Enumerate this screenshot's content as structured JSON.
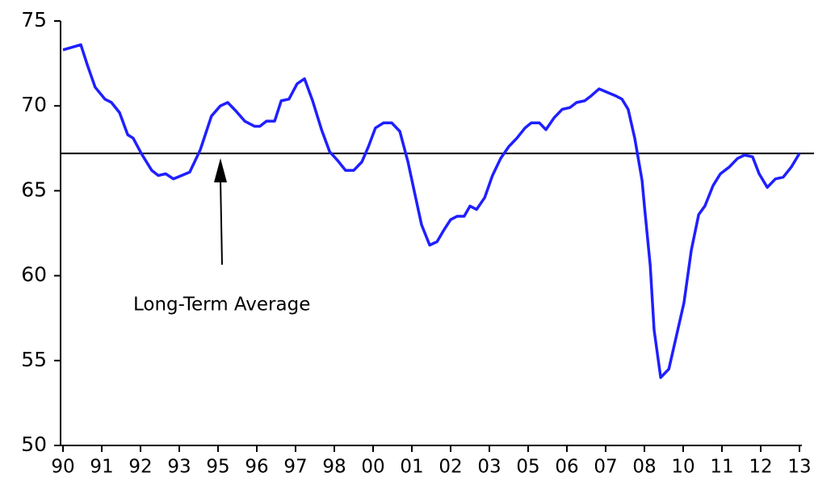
{
  "chart_data": {
    "type": "line",
    "xlim": [
      0,
      19
    ],
    "ylim": [
      50,
      75
    ],
    "yticks": [
      50,
      55,
      60,
      65,
      70,
      75
    ],
    "xticks": [
      {
        "value": 0,
        "label": "90"
      },
      {
        "value": 1,
        "label": "91"
      },
      {
        "value": 2,
        "label": "92"
      },
      {
        "value": 3,
        "label": "93"
      },
      {
        "value": 4,
        "label": "95"
      },
      {
        "value": 5,
        "label": "96"
      },
      {
        "value": 6,
        "label": "97"
      },
      {
        "value": 7,
        "label": "98"
      },
      {
        "value": 8,
        "label": "00"
      },
      {
        "value": 9,
        "label": "01"
      },
      {
        "value": 10,
        "label": "02"
      },
      {
        "value": 11,
        "label": "03"
      },
      {
        "value": 12,
        "label": "05"
      },
      {
        "value": 13,
        "label": "06"
      },
      {
        "value": 14,
        "label": "07"
      },
      {
        "value": 15,
        "label": "08"
      },
      {
        "value": 16,
        "label": "10"
      },
      {
        "value": 17,
        "label": "11"
      },
      {
        "value": 18,
        "label": "12"
      },
      {
        "value": 19,
        "label": "13"
      }
    ],
    "series": [
      {
        "color": "#1f1fff",
        "x": [
          0,
          0.46,
          0.63,
          0.83,
          1.08,
          1.25,
          1.46,
          1.67,
          1.81,
          2.02,
          2.29,
          2.46,
          2.65,
          2.85,
          3.06,
          3.27,
          3.54,
          3.83,
          4.06,
          4.25,
          4.46,
          4.69,
          4.94,
          5.08,
          5.25,
          5.46,
          5.63,
          5.83,
          6.04,
          6.23,
          6.44,
          6.67,
          6.88,
          7.08,
          7.29,
          7.5,
          7.71,
          7.88,
          8.06,
          8.27,
          8.48,
          8.69,
          8.9,
          9.06,
          9.25,
          9.46,
          9.65,
          9.83,
          10,
          10.17,
          10.35,
          10.5,
          10.67,
          10.88,
          11.08,
          11.29,
          11.5,
          11.71,
          11.92,
          12.08,
          12.29,
          12.46,
          12.67,
          12.88,
          13.08,
          13.25,
          13.46,
          13.63,
          13.83,
          14.04,
          14.25,
          14.42,
          14.58,
          14.75,
          14.94,
          15,
          15.15,
          15.25,
          15.42,
          15.63,
          15.83,
          16.02,
          16.21,
          16.4,
          16.56,
          16.77,
          16.96,
          17.19,
          17.4,
          17.58,
          17.79,
          17.96,
          18.17,
          18.38,
          18.58,
          18.79,
          19
        ],
        "values": [
          73.3,
          73.6,
          72.4,
          71.1,
          70.4,
          70.2,
          69.6,
          68.3,
          68.1,
          67.2,
          66.2,
          65.9,
          66.0,
          65.7,
          65.9,
          66.1,
          67.4,
          69.4,
          70.0,
          70.2,
          69.7,
          69.1,
          68.8,
          68.8,
          69.1,
          69.1,
          70.3,
          70.4,
          71.3,
          71.6,
          70.3,
          68.6,
          67.3,
          66.8,
          66.2,
          66.2,
          66.7,
          67.6,
          68.7,
          69.0,
          69.0,
          68.5,
          66.7,
          65.0,
          63.0,
          61.8,
          62.0,
          62.7,
          63.3,
          63.5,
          63.5,
          64.1,
          63.9,
          64.6,
          65.9,
          66.9,
          67.6,
          68.1,
          68.7,
          69.0,
          69.0,
          68.6,
          69.3,
          69.8,
          69.9,
          70.2,
          70.3,
          70.6,
          71.0,
          70.8,
          70.6,
          70.4,
          69.8,
          68.1,
          65.6,
          64.1,
          60.6,
          56.8,
          54.0,
          54.5,
          56.5,
          58.4,
          61.5,
          63.6,
          64.1,
          65.3,
          66.0,
          66.4,
          66.9,
          67.1,
          67.0,
          66.0,
          65.2,
          65.7,
          65.8,
          66.4,
          67.2
        ]
      }
    ],
    "reference_line": {
      "value": 67.2
    },
    "annotation": {
      "text": "Long-Term Average"
    }
  }
}
